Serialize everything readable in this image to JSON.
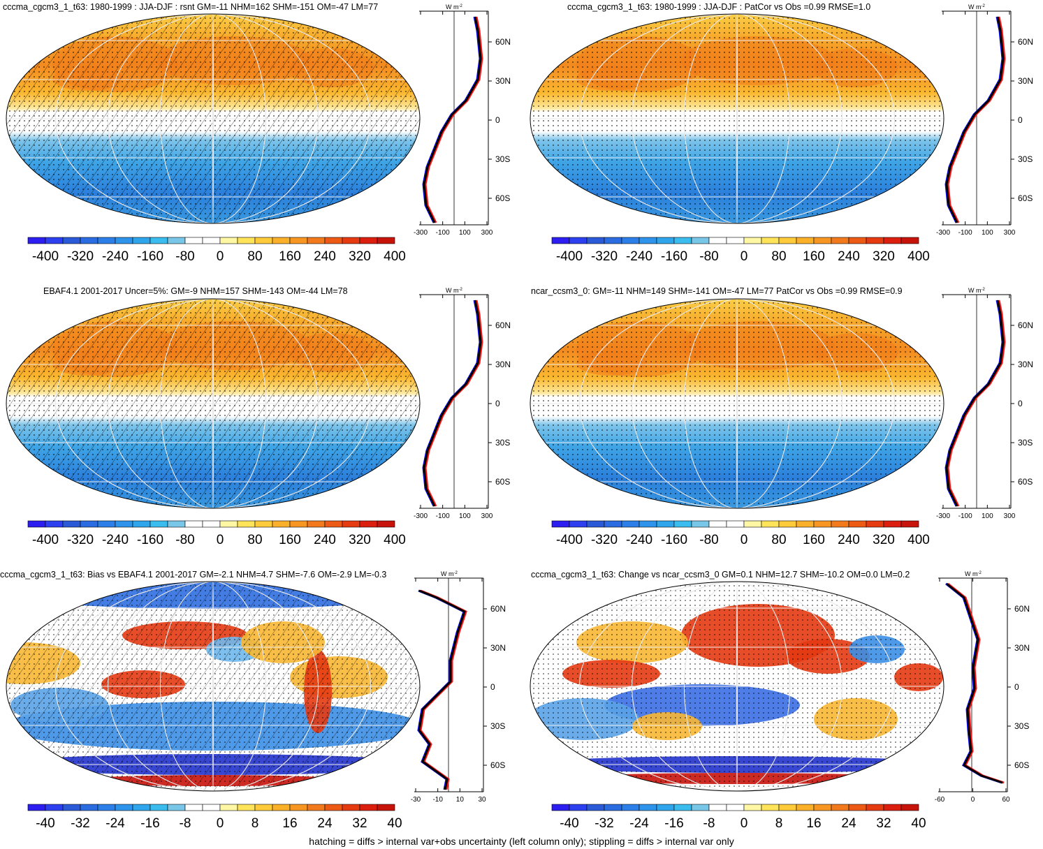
{
  "footer": "hatching = diffs > internal var+obs uncertainty (left column only); stippling = diffs > internal var only",
  "profile_unit": "W m",
  "profile_unit_sup": "-2",
  "lat_ticks": [
    "60N",
    "30N",
    "0",
    "30S",
    "60S"
  ],
  "colors": {
    "cbar": [
      "#2c1ef0",
      "#2d40f0",
      "#2a5ad8",
      "#2b6de0",
      "#2c7fe8",
      "#2e93ea",
      "#2fa6ec",
      "#3bbcee",
      "#78c7e9",
      "#ffffff",
      "#ffffff",
      "#fff7a3",
      "#ffe359",
      "#ffcb3a",
      "#fbb02a",
      "#f79622",
      "#f27a1c",
      "#ed5a16",
      "#e63a11",
      "#dc1e0e",
      "#c8130b"
    ],
    "map_ocean_warm": "#f5a623",
    "map_cool": "#4aa3df",
    "profile_model": "#0b0bff",
    "profile_obs": "#ff1111",
    "profile_mean": "#000000"
  },
  "panels": [
    {
      "title": "cccma_cgcm3_1_t63: 1980-1999 : JJA-DJF : rsnt GM=-11 NHM=162 SHM=-151 OM=-47 LM=77",
      "cbar_labels": [
        "-400",
        "-320",
        "-240",
        "-160",
        "-80",
        "0",
        "80",
        "160",
        "240",
        "320",
        "400"
      ],
      "profile_xticks": [
        "-300",
        "-100",
        "100",
        "300"
      ]
    },
    {
      "title": "cccma_cgcm3_1_t63: 1980-1999 : JJA-DJF : PatCor vs Obs =0.99 RMSE=1.0",
      "cbar_labels": [
        "-400",
        "-320",
        "-240",
        "-160",
        "-80",
        "0",
        "80",
        "160",
        "240",
        "320",
        "400"
      ],
      "profile_xticks": [
        "-300",
        "-100",
        "100",
        "300"
      ]
    },
    {
      "title": "EBAF4.1 2001-2017 Uncer=5%: GM=-9 NHM=157 SHM=-143 OM=-44 LM=78",
      "cbar_labels": [
        "-400",
        "-320",
        "-240",
        "-160",
        "-80",
        "0",
        "80",
        "160",
        "240",
        "320",
        "400"
      ],
      "profile_xticks": [
        "-300",
        "-100",
        "100",
        "300"
      ]
    },
    {
      "title": "ncar_ccsm3_0: GM=-11 NHM=149 SHM=-141 OM=-47 LM=77 PatCor vs Obs =0.99 RMSE=0.9",
      "cbar_labels": [
        "-400",
        "-320",
        "-240",
        "-160",
        "-80",
        "0",
        "80",
        "160",
        "240",
        "320",
        "400"
      ],
      "profile_xticks": [
        "-300",
        "-100",
        "100",
        "300"
      ]
    },
    {
      "title": "cccma_cgcm3_1_t63: Bias vs EBAF4.1 2001-2017 GM=-2.1 NHM=4.7 SHM=-7.6 OM=-2.9 LM=-0.3",
      "cbar_labels": [
        "-40",
        "-32",
        "-24",
        "-16",
        "-8",
        "0",
        "8",
        "16",
        "24",
        "32",
        "40"
      ],
      "profile_xticks": [
        "-30",
        "-10",
        "10",
        "30"
      ]
    },
    {
      "title": "cccma_cgcm3_1_t63: Change vs ncar_ccsm3_0 GM=0.1 NHM=12.7 SHM=-10.2 OM=0.0 LM=0.2",
      "cbar_labels": [
        "-40",
        "-32",
        "-24",
        "-16",
        "-8",
        "0",
        "8",
        "16",
        "24",
        "32",
        "40"
      ],
      "profile_xticks": [
        "-60",
        "0",
        "60"
      ]
    }
  ]
}
